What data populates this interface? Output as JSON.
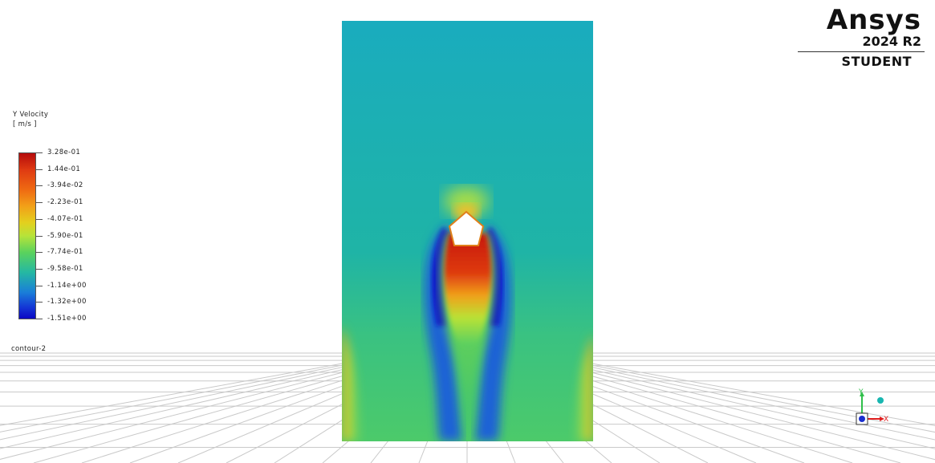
{
  "logo": {
    "brand": "Ansys",
    "version": "2024 R2",
    "edition": "STUDENT"
  },
  "legend": {
    "variable": "Y Velocity",
    "units": "[ m/s ]",
    "ticks": [
      "3.28e-01",
      "1.44e-01",
      "-3.94e-02",
      "-2.23e-01",
      "-4.07e-01",
      "-5.90e-01",
      "-7.74e-01",
      "-9.58e-01",
      "-1.14e+00",
      "-1.32e+00",
      "-1.51e+00"
    ],
    "colors": {
      "max": "#b50b0b",
      "mid": "#b6e33a",
      "min": "#0b07c4"
    }
  },
  "contour": {
    "name": "contour-2"
  },
  "triad": {
    "x_label": "X",
    "y_label": "Y"
  }
}
